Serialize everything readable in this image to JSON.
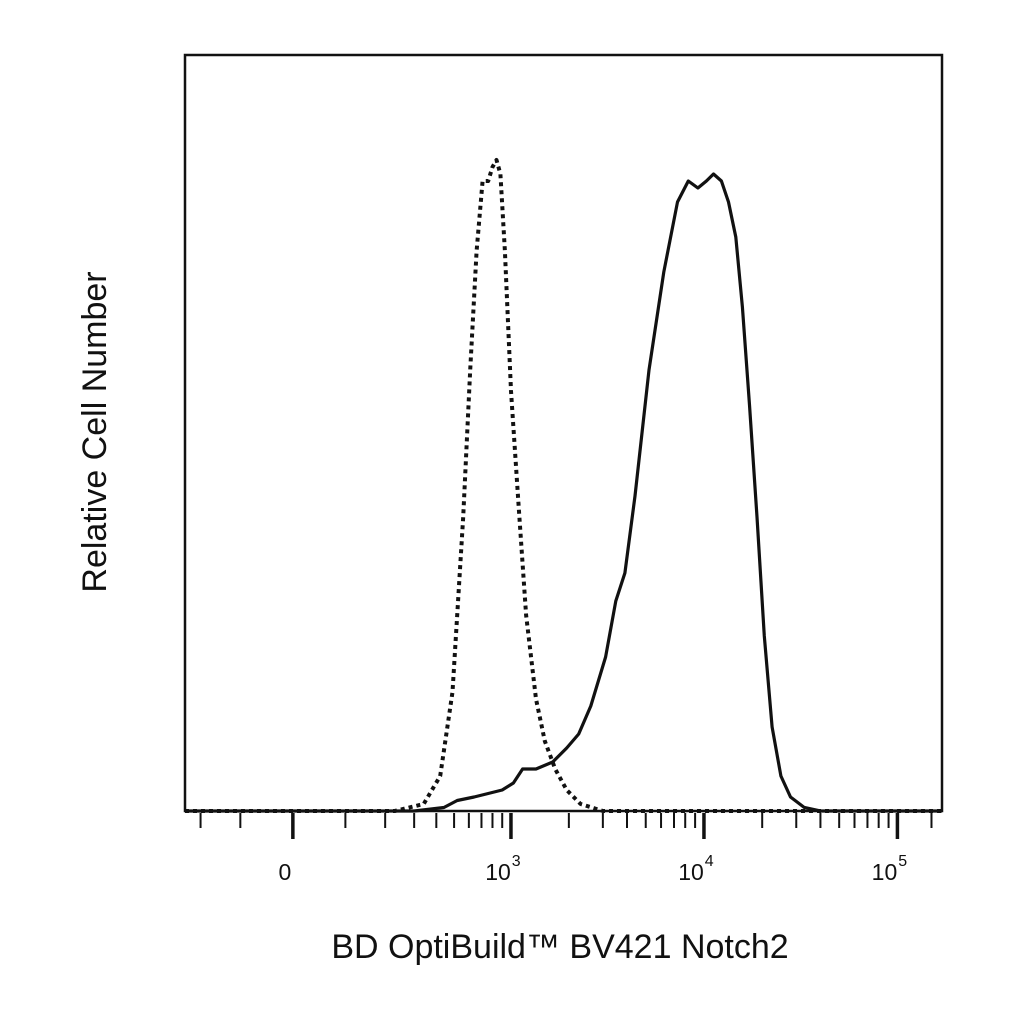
{
  "chart_data": {
    "type": "line",
    "title": "",
    "xlabel": "BD OptiBuild™ BV421 Notch2",
    "ylabel": "Relative Cell Number",
    "x_scale": "biexponential (log with linear region around 0)",
    "xlim": [
      -250,
      170000
    ],
    "ylim": [
      0,
      108
    ],
    "grid": false,
    "legend": "none",
    "x_tick_labels": [
      {
        "value": 0,
        "base": "0",
        "exp": ""
      },
      {
        "value": 1000,
        "base": "10",
        "exp": "3"
      },
      {
        "value": 10000,
        "base": "10",
        "exp": "4"
      },
      {
        "value": 100000,
        "base": "10",
        "exp": "5"
      }
    ],
    "series": [
      {
        "style": "dotted",
        "color": "#111111",
        "points": [
          [
            -250,
            0
          ],
          [
            0,
            0
          ],
          [
            230,
            0
          ],
          [
            340,
            1
          ],
          [
            420,
            5
          ],
          [
            490,
            17
          ],
          [
            560,
            42
          ],
          [
            610,
            63
          ],
          [
            660,
            80
          ],
          [
            710,
            90
          ],
          [
            760,
            90
          ],
          [
            800,
            92
          ],
          [
            840,
            93
          ],
          [
            880,
            91
          ],
          [
            930,
            80
          ],
          [
            1000,
            60
          ],
          [
            1100,
            43
          ],
          [
            1200,
            28
          ],
          [
            1350,
            16
          ],
          [
            1500,
            10
          ],
          [
            1700,
            6
          ],
          [
            1950,
            3
          ],
          [
            2300,
            1
          ],
          [
            3000,
            0
          ],
          [
            5000,
            0
          ],
          [
            20000,
            0
          ],
          [
            170000,
            0
          ]
        ]
      },
      {
        "style": "solid",
        "color": "#111111",
        "points": [
          [
            -250,
            0
          ],
          [
            0,
            0
          ],
          [
            300,
            0
          ],
          [
            440,
            0.5
          ],
          [
            520,
            1.5
          ],
          [
            640,
            2
          ],
          [
            760,
            2.5
          ],
          [
            900,
            3
          ],
          [
            1030,
            4
          ],
          [
            1150,
            6
          ],
          [
            1350,
            6
          ],
          [
            1650,
            7
          ],
          [
            1950,
            9
          ],
          [
            2250,
            11
          ],
          [
            2600,
            15
          ],
          [
            3100,
            22
          ],
          [
            3500,
            30
          ],
          [
            3900,
            34
          ],
          [
            4400,
            45
          ],
          [
            5200,
            63
          ],
          [
            6200,
            77
          ],
          [
            7300,
            87
          ],
          [
            8300,
            90
          ],
          [
            9300,
            89
          ],
          [
            10300,
            90
          ],
          [
            11200,
            91
          ],
          [
            12300,
            90
          ],
          [
            13400,
            87
          ],
          [
            14600,
            82
          ],
          [
            15800,
            72
          ],
          [
            17200,
            58
          ],
          [
            18800,
            42
          ],
          [
            20500,
            25
          ],
          [
            22500,
            12
          ],
          [
            25000,
            5
          ],
          [
            28000,
            2
          ],
          [
            33000,
            0.5
          ],
          [
            40000,
            0
          ],
          [
            170000,
            0
          ]
        ]
      }
    ]
  }
}
